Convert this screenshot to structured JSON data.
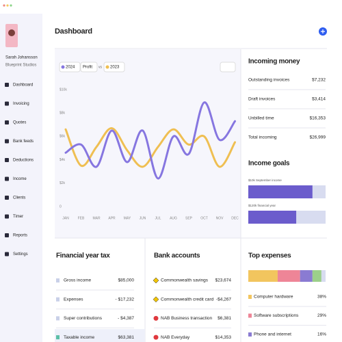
{
  "sidebar": {
    "user": {
      "name": "Sarah Johansson",
      "company": "Blueprint Studios"
    },
    "nav": [
      "Dashboard",
      "Invoicing",
      "Quotes",
      "Bank feeds",
      "Deductions",
      "Income",
      "Clients",
      "Timer",
      "Reports",
      "Settings"
    ]
  },
  "header": {
    "title": "Dashboard"
  },
  "chart": {
    "type": "line",
    "metric": "Profit",
    "compare": "vs",
    "categories": [
      "JAN",
      "FEB",
      "MAR",
      "APR",
      "MAY",
      "JUN",
      "JUL",
      "AUG",
      "SEP",
      "OCT",
      "NOV",
      "DEC"
    ],
    "series": [
      {
        "name": "2024",
        "color": "#8676e0",
        "values": [
          4600,
          5300,
          3400,
          6500,
          3800,
          6500,
          2400,
          6000,
          4500,
          8900,
          5700,
          7300
        ]
      },
      {
        "name": "2023",
        "color": "#efbf52",
        "values": [
          6600,
          3500,
          5100,
          6700,
          4800,
          3400,
          5100,
          6600,
          5300,
          6000,
          3400,
          5500
        ]
      }
    ],
    "ylim": [
      0,
      10000
    ],
    "yticks": [
      0,
      {
        "value": 2000,
        "label": "$2k"
      },
      {
        "value": 4000,
        "label": "$4k"
      },
      {
        "value": 6000,
        "label": "$6k"
      },
      {
        "value": 8000,
        "label": "$8k"
      },
      {
        "value": 10000,
        "label": "$10k"
      }
    ]
  },
  "incoming_money": {
    "title": "Incoming money",
    "rows": [
      [
        "Outstanding invoices",
        "$7,232"
      ],
      [
        "Draft invoices",
        "$3,414"
      ],
      [
        "Unbilled time",
        "$16,353"
      ],
      [
        "Total incoming",
        "$26,999"
      ]
    ]
  },
  "income_goals": {
    "title": "Income goals",
    "goals": [
      {
        "label": "$10k September income",
        "progress": 83
      },
      {
        "label": "$120k financial year",
        "progress": 62
      }
    ]
  },
  "financial_year_tax": {
    "title": "Financial year tax",
    "rows": [
      [
        "Gross income",
        "$85,000"
      ],
      [
        "Expenses",
        "- $17,232"
      ],
      [
        "Super contributions",
        "- $4,387"
      ],
      [
        "Taxable income",
        "$63,381"
      ]
    ]
  },
  "bank_accounts": {
    "title": "Bank accounts",
    "rows": [
      [
        "Commonwealth savings",
        "$23,674"
      ],
      [
        "Commonwealth credit card",
        "-$4,267"
      ],
      [
        "NAB Business transaction",
        "$6,381"
      ],
      [
        "NAB Everyday",
        "$14,353"
      ]
    ]
  },
  "top_expenses": {
    "title": "Top expenses",
    "items": [
      {
        "name": "Computer hardware",
        "value": 38,
        "value_label": "38%",
        "color": "#f2c55e"
      },
      {
        "name": "Software subscriptions",
        "value": 29,
        "value_label": "29%",
        "color": "#ee8597"
      },
      {
        "name": "Phone and internet",
        "value": 16,
        "value_label": "16%",
        "color": "#8a7bd2"
      }
    ]
  }
}
